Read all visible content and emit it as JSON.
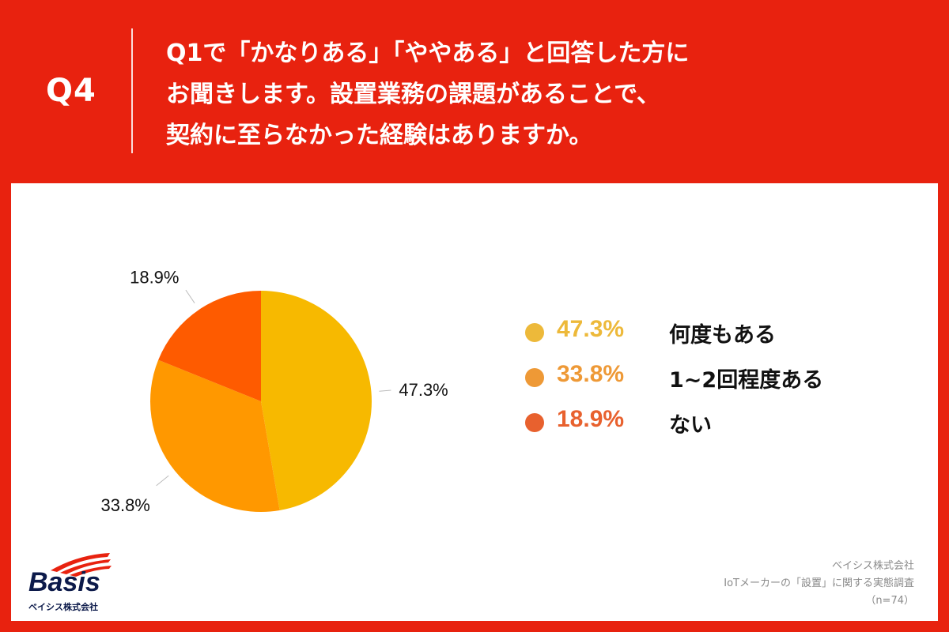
{
  "header": {
    "q_label": "Q4",
    "question_lines": [
      "Q1で「かなりある」「ややある」と回答した方に",
      "お聞きします。設置業務の課題があることで、",
      "契約に至らなかった経験はありますか。"
    ]
  },
  "chart_data": {
    "type": "pie",
    "start_angle": "12 o'clock, clockwise",
    "slices": [
      {
        "label": "何度もある",
        "value": 47.3,
        "value_label": "47.3%",
        "color": "#f7b900"
      },
      {
        "label": "1~2回程度ある",
        "value": 33.8,
        "value_label": "33.8%",
        "color": "#ff9800"
      },
      {
        "label": "ない",
        "value": 18.9,
        "value_label": "18.9%",
        "color": "#fe5b00"
      }
    ]
  },
  "legend": [
    {
      "pct": "47.3%",
      "label": "何度もある",
      "dot_color": "#edb93a",
      "text_color": "#edb93a"
    },
    {
      "pct": "33.8%",
      "label": "1~2回程度ある",
      "dot_color": "#ee9936",
      "text_color": "#ee9936"
    },
    {
      "pct": "18.9%",
      "label": "ない",
      "dot_color": "#e8612e",
      "text_color": "#e8612e"
    }
  ],
  "logo": {
    "wordmark": "Basis",
    "company": "ベイシス株式会社"
  },
  "source": {
    "company": "ベイシス株式会社",
    "survey": "IoTメーカーの「設置」に関する実態調査",
    "sample": "（n=74）"
  }
}
